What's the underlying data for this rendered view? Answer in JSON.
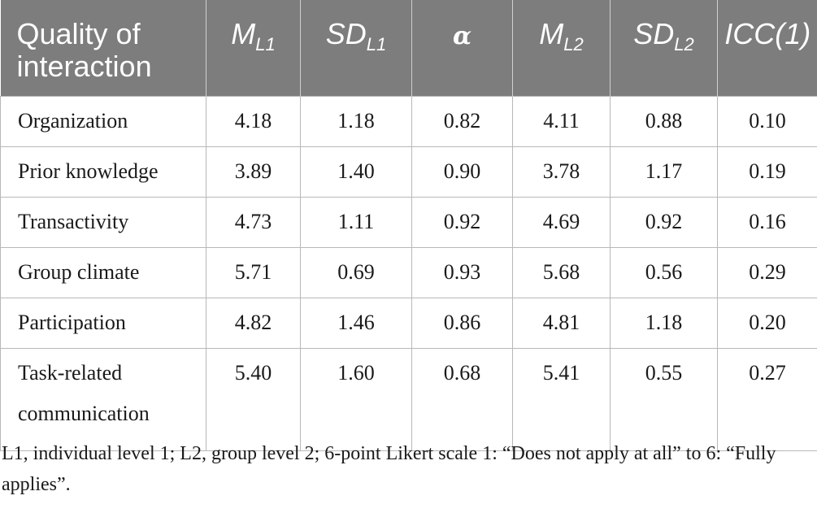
{
  "table": {
    "headers": {
      "col0": "Quality of interaction",
      "col1": {
        "main": "M",
        "sub": "L1"
      },
      "col2": {
        "main": "SD",
        "sub": "L1"
      },
      "col3": {
        "main": "α"
      },
      "col4": {
        "main": "M",
        "sub": "L2"
      },
      "col5": {
        "main": "SD",
        "sub": "L2"
      },
      "col6": {
        "main": "ICC(1)"
      }
    },
    "rows": [
      {
        "label": "Organization",
        "m_l1": "4.18",
        "sd_l1": "1.18",
        "alpha": "0.82",
        "m_l2": "4.11",
        "sd_l2": "0.88",
        "icc1": "0.10"
      },
      {
        "label": "Prior knowledge",
        "m_l1": "3.89",
        "sd_l1": "1.40",
        "alpha": "0.90",
        "m_l2": "3.78",
        "sd_l2": "1.17",
        "icc1": "0.19"
      },
      {
        "label": "Transactivity",
        "m_l1": "4.73",
        "sd_l1": "1.11",
        "alpha": "0.92",
        "m_l2": "4.69",
        "sd_l2": "0.92",
        "icc1": "0.16"
      },
      {
        "label": "Group climate",
        "m_l1": "5.71",
        "sd_l1": "0.69",
        "alpha": "0.93",
        "m_l2": "5.68",
        "sd_l2": "0.56",
        "icc1": "0.29"
      },
      {
        "label": "Participation",
        "m_l1": "4.82",
        "sd_l1": "1.46",
        "alpha": "0.86",
        "m_l2": "4.81",
        "sd_l2": "1.18",
        "icc1": "0.20"
      },
      {
        "label": "Task-related communication",
        "m_l1": "5.40",
        "sd_l1": "1.60",
        "alpha": "0.68",
        "m_l2": "5.41",
        "sd_l2": "0.55",
        "icc1": "0.27"
      }
    ]
  },
  "footnote": "L1, individual level 1; L2, group level 2; 6-point Likert scale 1: “Does not apply at all” to 6: “Fully applies”.",
  "colors": {
    "header_background": "#7d7d7d",
    "header_text": "#ffffff",
    "grid_lines": "#b8b8b8"
  }
}
